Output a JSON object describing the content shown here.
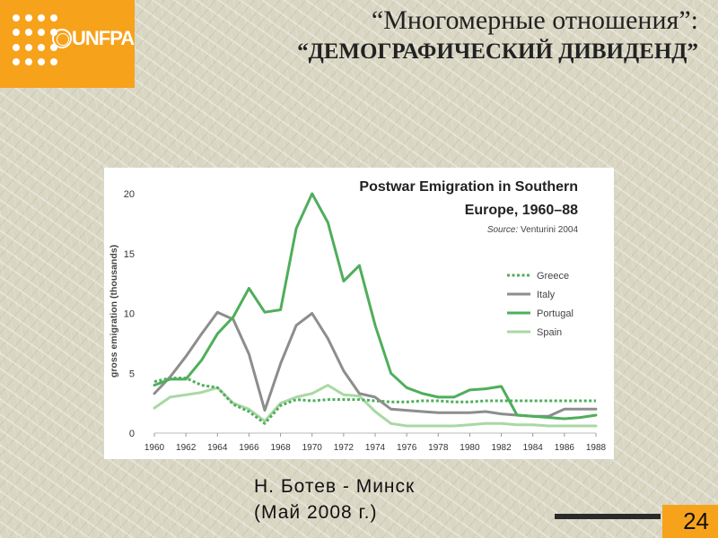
{
  "header": {
    "logo_text": "UNFPA",
    "title_line1": "“Многомерные отношения”:",
    "title_line2": "“ДЕМОГРАФИЧЕСКИЙ ДИВИДЕНД”"
  },
  "footer": {
    "author_line1": "Н. Ботев - Минск",
    "author_line2": "(Май 2008 г.)",
    "page_number": "24"
  },
  "chart_data": {
    "type": "line",
    "title": "Postwar Emigration in Southern",
    "title_line2": "Europe, 1960–88",
    "source_prefix": "Source:",
    "source": " Venturini 2004",
    "ylabel": "gross emigration (thousands)",
    "xlabel": "",
    "xlim": [
      1960,
      1988
    ],
    "ylim": [
      0,
      20
    ],
    "xticks": [
      "1960",
      "1962",
      "1964",
      "1966",
      "1968",
      "1970",
      "1972",
      "1974",
      "1976",
      "1978",
      "1980",
      "1982",
      "1984",
      "1986",
      "1988"
    ],
    "yticks": [
      "0",
      "5",
      "10",
      "15",
      "20"
    ],
    "legend_position": "right",
    "x": [
      1960,
      1961,
      1962,
      1963,
      1964,
      1965,
      1966,
      1967,
      1968,
      1969,
      1970,
      1971,
      1972,
      1973,
      1974,
      1975,
      1976,
      1977,
      1978,
      1979,
      1980,
      1981,
      1982,
      1983,
      1984,
      1985,
      1986,
      1987,
      1988
    ],
    "series": [
      {
        "name": "Greece",
        "style": "dotted",
        "color": "#4fae5b",
        "values": [
          4.3,
          4.6,
          4.6,
          4.0,
          3.8,
          2.4,
          1.8,
          0.8,
          2.3,
          2.8,
          2.7,
          2.8,
          2.8,
          2.8,
          2.7,
          2.6,
          2.6,
          2.7,
          2.7,
          2.6,
          2.6,
          2.7,
          2.7,
          2.7,
          2.7,
          2.7,
          2.7,
          2.7,
          2.7
        ]
      },
      {
        "name": "Italy",
        "style": "solid",
        "color": "#8d8d8d",
        "values": [
          3.3,
          4.7,
          6.4,
          8.3,
          10.1,
          9.5,
          6.6,
          1.9,
          5.8,
          9.0,
          10.0,
          7.9,
          5.2,
          3.3,
          3.0,
          2.0,
          1.9,
          1.8,
          1.7,
          1.7,
          1.7,
          1.8,
          1.6,
          1.5,
          1.4,
          1.4,
          2.0,
          2.0,
          2.0
        ]
      },
      {
        "name": "Portugal",
        "style": "solid",
        "color": "#4fae5b",
        "values": [
          4.0,
          4.5,
          4.5,
          6.1,
          8.3,
          9.7,
          12.1,
          10.1,
          10.3,
          17.1,
          20.0,
          17.6,
          12.7,
          14.0,
          9.0,
          5.0,
          3.8,
          3.3,
          3.0,
          3.0,
          3.6,
          3.7,
          3.9,
          1.5,
          1.4,
          1.3,
          1.2,
          1.3,
          1.5
        ]
      },
      {
        "name": "Spain",
        "style": "solid",
        "color": "#a9d8a4",
        "values": [
          2.1,
          3.0,
          3.2,
          3.4,
          3.8,
          2.5,
          2.0,
          1.0,
          2.5,
          3.0,
          3.3,
          4.0,
          3.2,
          3.1,
          1.8,
          0.8,
          0.6,
          0.6,
          0.6,
          0.6,
          0.7,
          0.8,
          0.8,
          0.7,
          0.7,
          0.6,
          0.6,
          0.6,
          0.6
        ]
      }
    ]
  }
}
